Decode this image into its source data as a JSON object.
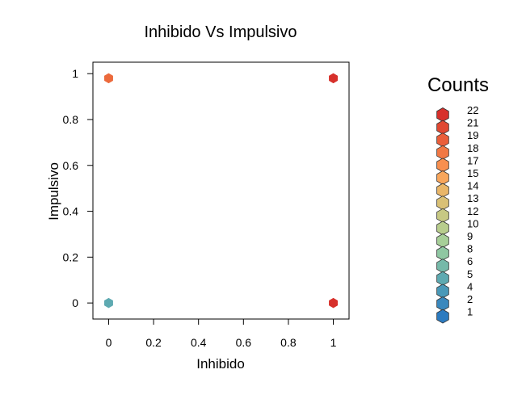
{
  "chart_data": {
    "type": "hexbin",
    "title": "Inhibido Vs Impulsivo",
    "xlabel": "Inhibido",
    "ylabel": "Impulsivo",
    "xlim": [
      -0.07,
      1.07
    ],
    "ylim": [
      -0.07,
      1.05
    ],
    "x_ticks": [
      0,
      0.2,
      0.4,
      0.6,
      0.8,
      1
    ],
    "x_tick_labels": [
      "0",
      "0.2",
      "0.4",
      "0.6",
      "0.8",
      "1"
    ],
    "y_ticks": [
      0,
      0.2,
      0.4,
      0.6,
      0.8,
      1
    ],
    "y_tick_labels": [
      "0",
      "0.2",
      "0.4",
      "0.6",
      "0.8",
      "1"
    ],
    "grid": false,
    "legend": {
      "title": "Counts",
      "placement": "right",
      "entries": [
        {
          "label": "22",
          "color": "#d7302b"
        },
        {
          "label": "21",
          "color": "#e04832"
        },
        {
          "label": "19",
          "color": "#ea5e3a"
        },
        {
          "label": "18",
          "color": "#f17844"
        },
        {
          "label": "17",
          "color": "#f78f4f"
        },
        {
          "label": "15",
          "color": "#f8a65c"
        },
        {
          "label": "14",
          "color": "#e9b668"
        },
        {
          "label": "13",
          "color": "#d9c075"
        },
        {
          "label": "12",
          "color": "#c7c883"
        },
        {
          "label": "10",
          "color": "#b8cd8d"
        },
        {
          "label": "9",
          "color": "#a7cf98"
        },
        {
          "label": "8",
          "color": "#8fc7a2"
        },
        {
          "label": "6",
          "color": "#76b9a9"
        },
        {
          "label": "5",
          "color": "#5eaab1"
        },
        {
          "label": "4",
          "color": "#4a99b8"
        },
        {
          "label": "2",
          "color": "#3a88bd"
        },
        {
          "label": "1",
          "color": "#2c7bc0"
        }
      ]
    },
    "points": [
      {
        "x": 0,
        "y": 0.98,
        "count": 18,
        "color": "#ec6a3c"
      },
      {
        "x": 1,
        "y": 0.98,
        "count": 22,
        "color": "#d7302b"
      },
      {
        "x": 0,
        "y": 0,
        "count": 5,
        "color": "#5eaab1"
      },
      {
        "x": 1,
        "y": 0,
        "count": 22,
        "color": "#d7302b"
      }
    ]
  }
}
